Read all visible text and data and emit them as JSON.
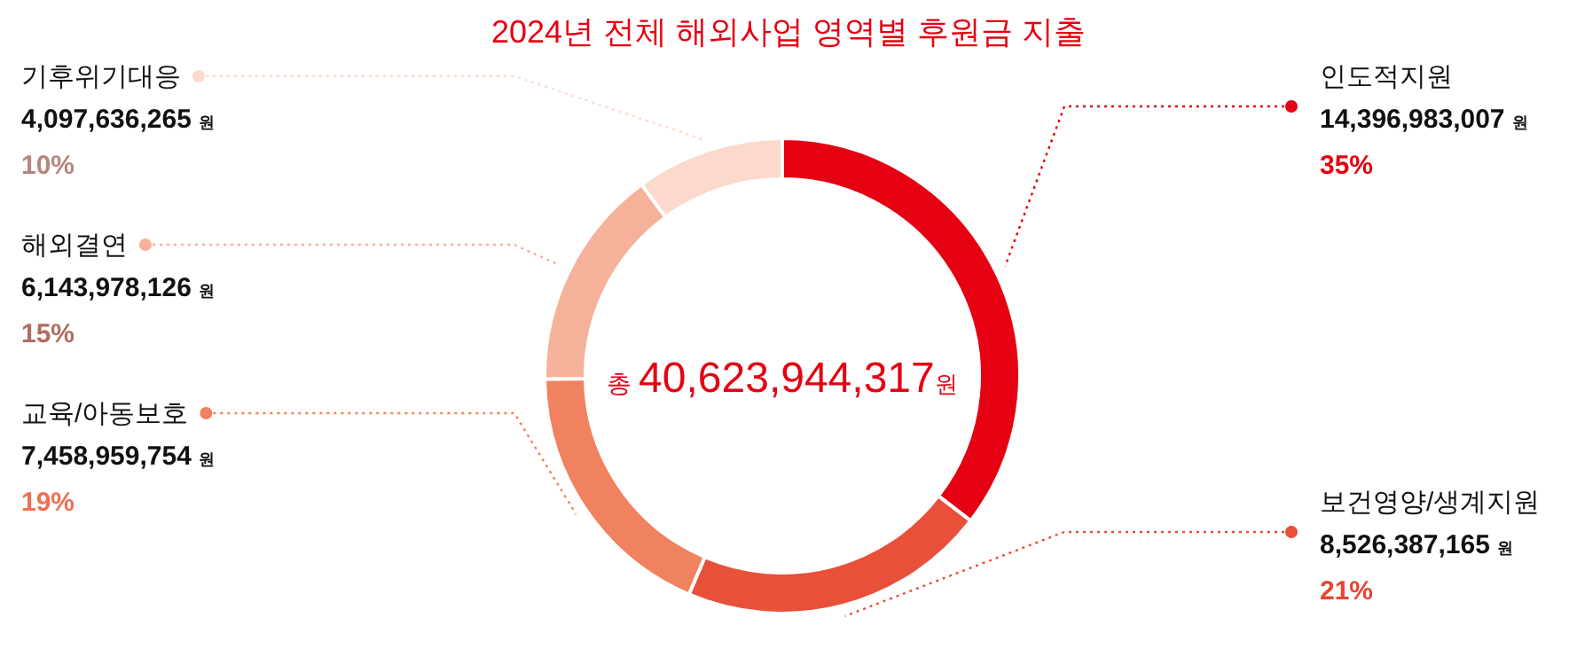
{
  "chart_data": {
    "type": "donut",
    "title": "2024년 전체 해외사업 영역별 후원금 지출",
    "categories": [
      "인도적지원",
      "보건영양/생계지원",
      "교육/아동보호",
      "해외결연",
      "기후위기대응"
    ],
    "values": [
      14396983007,
      8526387165,
      7458959754,
      6143978126,
      4097636265
    ],
    "value_labels": [
      "14,396,983,007원",
      "8,526,387,165원",
      "7,458,959,754원",
      "6,143,978,126원",
      "4,097,636,265원"
    ],
    "legend": "left",
    "colors": [
      "#e50012",
      "#e8503a",
      "#f0825f",
      "#f5b19a",
      "#fbdacd"
    ],
    "annotations": [
      {
        "text": "35%",
        "x": "인도적지원"
      },
      {
        "text": "21%",
        "x": "보건영양/생계지원"
      },
      {
        "text": "19%",
        "x": "교육/아동보호"
      },
      {
        "text": "15%",
        "x": "해외결연"
      },
      {
        "text": "10%",
        "x": "기후위기대응"
      },
      "총 40,623,944,317원"
    ]
  }
}
